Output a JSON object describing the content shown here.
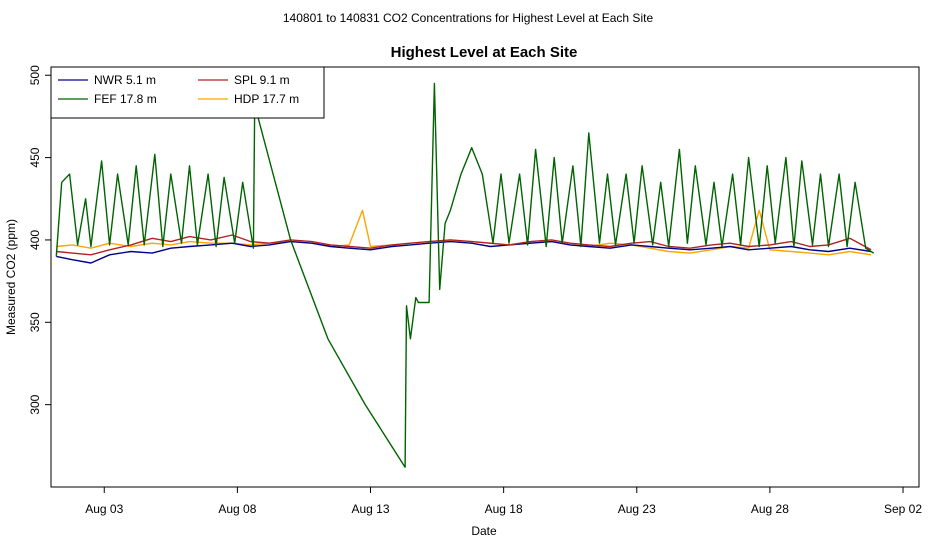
{
  "chart_data": {
    "type": "line",
    "suptitle": "140801  to  140831 CO2 Concentrations for Highest Level at Each Site",
    "title": "Highest Level at Each Site",
    "xlabel": "Date",
    "ylabel": "Measured CO2 (ppm)",
    "xlim": [
      0.0,
      32.6
    ],
    "ylim": [
      250,
      505
    ],
    "x_ticks": [
      {
        "value": 2,
        "label": "Aug 03"
      },
      {
        "value": 7,
        "label": "Aug 08"
      },
      {
        "value": 12,
        "label": "Aug 13"
      },
      {
        "value": 17,
        "label": "Aug 18"
      },
      {
        "value": 22,
        "label": "Aug 23"
      },
      {
        "value": 27,
        "label": "Aug 28"
      },
      {
        "value": 32,
        "label": "Sep 02"
      }
    ],
    "y_ticks": [
      300,
      350,
      400,
      450,
      500
    ],
    "legend": [
      {
        "name": "NWR  5.1 m",
        "color": "#00008B"
      },
      {
        "name": "SPL  9.1 m",
        "color": "#B22222"
      },
      {
        "name": "FEF  17.8 m",
        "color": "#006400"
      },
      {
        "name": "HDP  17.7 m",
        "color": "#FFA500"
      }
    ],
    "series": [
      {
        "name": "NWR  5.1 m",
        "color": "#00008B",
        "x": [
          0.2,
          0.8,
          1.5,
          2.2,
          3.0,
          3.8,
          4.5,
          5.2,
          6.0,
          6.8,
          7.5,
          8.2,
          9.0,
          9.8,
          10.5,
          11.2,
          12.0,
          12.8,
          13.5,
          14.2,
          15.0,
          15.8,
          16.5,
          17.2,
          18.0,
          18.8,
          19.5,
          20.2,
          21.0,
          21.8,
          22.5,
          23.2,
          24.0,
          24.8,
          25.5,
          26.2,
          27.0,
          27.8,
          28.5,
          29.2,
          30.0,
          30.8
        ],
        "y": [
          390,
          388,
          386,
          391,
          393,
          392,
          395,
          396,
          397,
          398,
          396,
          397,
          399,
          398,
          396,
          395,
          394,
          396,
          397,
          398,
          399,
          398,
          396,
          397,
          398,
          399,
          397,
          396,
          395,
          397,
          396,
          395,
          394,
          395,
          396,
          394,
          395,
          396,
          394,
          393,
          395,
          393
        ]
      },
      {
        "name": "SPL  9.1 m",
        "color": "#B22222",
        "x": [
          0.2,
          0.8,
          1.5,
          2.2,
          3.0,
          3.8,
          4.5,
          5.2,
          6.0,
          6.8,
          7.5,
          8.2,
          9.0,
          9.8,
          10.5,
          11.2,
          12.0,
          12.8,
          13.5,
          14.2,
          15.0,
          15.8,
          16.5,
          17.2,
          18.0,
          18.8,
          19.5,
          20.2,
          21.0,
          21.8,
          22.5,
          23.2,
          24.0,
          24.8,
          25.5,
          26.2,
          27.0,
          27.8,
          28.5,
          29.2,
          30.0,
          30.8
        ],
        "y": [
          393,
          392,
          391,
          394,
          397,
          401,
          399,
          402,
          400,
          403,
          399,
          398,
          400,
          399,
          397,
          396,
          395,
          397,
          398,
          399,
          400,
          399,
          398,
          397,
          399,
          400,
          398,
          397,
          396,
          398,
          399,
          396,
          395,
          397,
          398,
          396,
          397,
          399,
          396,
          397,
          401,
          394
        ]
      },
      {
        "name": "FEF  17.8 m",
        "color": "#006400",
        "x": [
          0.2,
          0.4,
          0.7,
          1.0,
          1.3,
          1.5,
          1.9,
          2.2,
          2.5,
          2.9,
          3.2,
          3.5,
          3.9,
          4.2,
          4.5,
          4.9,
          5.2,
          5.5,
          5.9,
          6.2,
          6.5,
          6.9,
          7.2,
          7.6,
          7.65,
          9.0,
          10.4,
          11.8,
          13.3,
          13.35,
          13.5,
          13.7,
          13.8,
          14.2,
          14.4,
          14.6,
          14.8,
          15.0,
          15.4,
          15.8,
          16.2,
          16.6,
          16.9,
          17.2,
          17.6,
          17.9,
          18.2,
          18.6,
          18.9,
          19.2,
          19.6,
          19.9,
          20.2,
          20.6,
          20.9,
          21.2,
          21.6,
          21.9,
          22.2,
          22.6,
          22.9,
          23.2,
          23.6,
          23.9,
          24.2,
          24.6,
          24.9,
          25.2,
          25.6,
          25.9,
          26.2,
          26.6,
          26.9,
          27.2,
          27.6,
          27.9,
          28.2,
          28.6,
          28.9,
          29.2,
          29.6,
          29.9,
          30.2,
          30.6,
          30.9
        ],
        "y": [
          390,
          435,
          440,
          397,
          425,
          396,
          448,
          397,
          440,
          397,
          445,
          397,
          452,
          396,
          440,
          398,
          445,
          397,
          440,
          396,
          438,
          398,
          435,
          395,
          482,
          400,
          340,
          300,
          262,
          360,
          340,
          365,
          362,
          362,
          495,
          370,
          410,
          418,
          440,
          456,
          440,
          398,
          440,
          398,
          440,
          397,
          455,
          396,
          450,
          398,
          445,
          396,
          465,
          398,
          440,
          397,
          440,
          398,
          445,
          397,
          435,
          396,
          455,
          398,
          445,
          397,
          435,
          396,
          440,
          397,
          450,
          396,
          445,
          398,
          450,
          396,
          448,
          397,
          440,
          396,
          440,
          396,
          435,
          395,
          392
        ]
      },
      {
        "name": "HDP  17.7 m",
        "color": "#FFA500",
        "x": [
          0.2,
          0.8,
          1.5,
          2.2,
          3.0,
          3.8,
          4.5,
          5.2,
          6.0,
          6.8,
          7.5,
          8.2,
          9.0,
          9.8,
          10.5,
          11.2,
          11.7,
          12.0,
          12.8,
          13.5,
          14.2,
          15.0,
          15.8,
          16.5,
          17.2,
          18.0,
          18.8,
          19.5,
          20.2,
          21.0,
          21.8,
          22.5,
          23.2,
          24.0,
          24.8,
          25.5,
          26.2,
          26.6,
          27.0,
          27.8,
          28.5,
          29.2,
          30.0,
          30.8
        ],
        "y": [
          396,
          397,
          395,
          398,
          396,
          398,
          397,
          399,
          398,
          398,
          397,
          398,
          399,
          398,
          396,
          397,
          418,
          396,
          397,
          398,
          399,
          400,
          399,
          398,
          397,
          398,
          399,
          397,
          396,
          398,
          397,
          395,
          393,
          392,
          394,
          396,
          395,
          418,
          394,
          393,
          392,
          391,
          393,
          391
        ]
      }
    ]
  }
}
